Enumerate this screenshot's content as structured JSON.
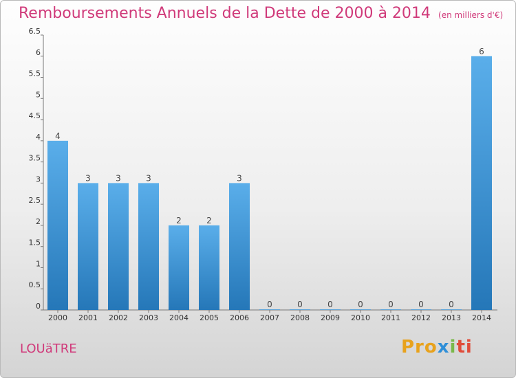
{
  "title": {
    "main": "Remboursements Annuels de la Dette de 2000 à 2014",
    "unit": "(en milliers d'€)"
  },
  "commune": "LOUäTRE",
  "brand": {
    "part1": "Pro",
    "part2": "x",
    "part3": "i",
    "part4": "ti"
  },
  "colors": {
    "bar_top": "#5aaeea",
    "bar_bottom": "#2577b8",
    "title": "#d03a7a"
  },
  "chart_data": {
    "type": "bar",
    "categories": [
      "2000",
      "2001",
      "2002",
      "2003",
      "2004",
      "2005",
      "2006",
      "2007",
      "2008",
      "2009",
      "2010",
      "2011",
      "2012",
      "2013",
      "2014"
    ],
    "values": [
      4,
      3,
      3,
      3,
      2,
      2,
      3,
      0,
      0,
      0,
      0,
      0,
      0,
      0,
      6
    ],
    "ylim": [
      0,
      6.5
    ],
    "yticks": [
      "0",
      "0.5",
      "1",
      "1.5",
      "2",
      "2.5",
      "3",
      "3.5",
      "4",
      "4.5",
      "5",
      "5.5",
      "6",
      "6.5"
    ],
    "grid": false
  }
}
